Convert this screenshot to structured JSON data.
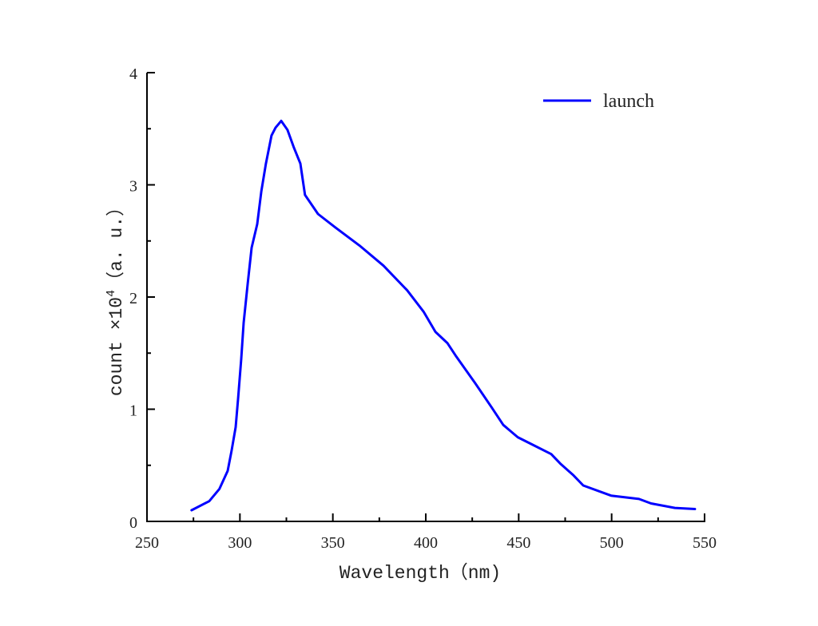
{
  "chart_data": {
    "type": "line",
    "title": "",
    "xlabel": "Wavelength（nm)",
    "ylabel": "count ×10⁴（a. u.）",
    "ylabel_parts": {
      "prefix": "count ×10",
      "exponent": "4",
      "suffix": "（a. u.）"
    },
    "xlim": [
      250,
      550
    ],
    "ylim": [
      0,
      4
    ],
    "x_ticks": [
      250,
      300,
      350,
      400,
      450,
      500,
      550
    ],
    "x_tick_labels": [
      "250",
      "300",
      "350",
      "400",
      "450",
      "500",
      "550"
    ],
    "x_minor_ticks": [
      275,
      325,
      375,
      425,
      475,
      525
    ],
    "y_ticks": [
      0,
      1,
      2,
      3,
      4
    ],
    "y_tick_labels": [
      "0",
      "1",
      "2",
      "3",
      "4"
    ],
    "y_minor_ticks": [
      0.5,
      1.5,
      2.5,
      3.5
    ],
    "grid": false,
    "legend_position": "upper right",
    "series": [
      {
        "name": "launch",
        "color": "#0000ff",
        "x": [
          274,
          283.5,
          289,
          293.4,
          295.5,
          297.7,
          299,
          300.7,
          302,
          304.2,
          306.3,
          309.3,
          311.5,
          314,
          317,
          319.2,
          322.2,
          325.6,
          329.1,
          332.5,
          335,
          342,
          351.4,
          364.3,
          377.2,
          390,
          398.8,
          405.2,
          411.6,
          416,
          426.7,
          435.3,
          441.7,
          449.5,
          455.5,
          467.5,
          472.7,
          479.5,
          484.7,
          499.7,
          514.7,
          521.2,
          534,
          544.8
        ],
        "values": [
          0.1,
          0.18,
          0.29,
          0.45,
          0.63,
          0.84,
          1.09,
          1.45,
          1.77,
          2.12,
          2.44,
          2.65,
          2.94,
          3.19,
          3.44,
          3.51,
          3.57,
          3.49,
          3.33,
          3.19,
          2.91,
          2.74,
          2.62,
          2.46,
          2.28,
          2.06,
          1.87,
          1.69,
          1.59,
          1.48,
          1.23,
          1.02,
          0.86,
          0.75,
          0.7,
          0.6,
          0.51,
          0.41,
          0.32,
          0.23,
          0.2,
          0.16,
          0.12,
          0.11
        ]
      }
    ]
  },
  "legend": {
    "items": [
      {
        "label": "launch",
        "color": "#0000ff"
      }
    ]
  }
}
